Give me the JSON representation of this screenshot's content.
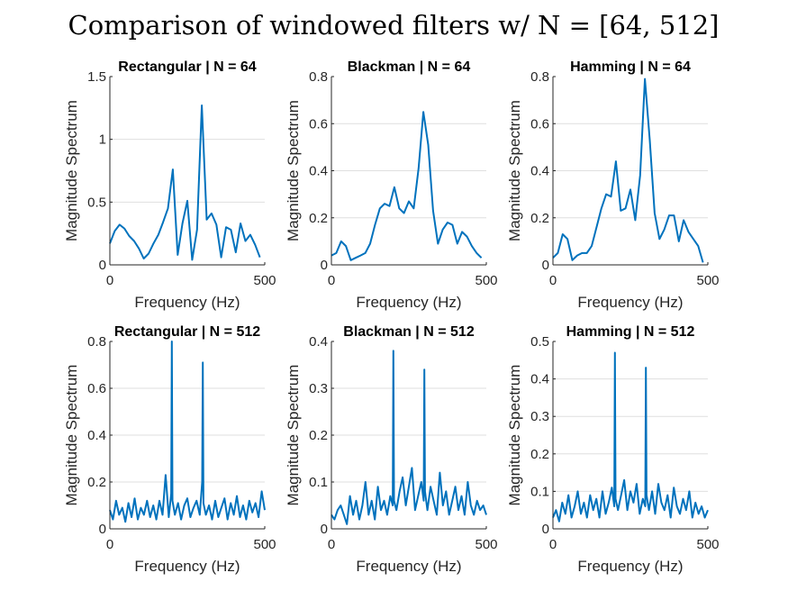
{
  "figure_title": "Comparison of windowed filters w/ N = [64, 512]",
  "series_color": "#0072BD",
  "chart_data": [
    {
      "type": "line",
      "title": "Rectangular | N = 64",
      "xlabel": "Frequency (Hz)",
      "ylabel": "Magnitude Spectrum",
      "xlim": [
        0,
        500
      ],
      "ylim": [
        0,
        1.5
      ],
      "xticks": [
        0,
        500
      ],
      "yticks": [
        0,
        0.5,
        1,
        1.5
      ],
      "ytick_labels": [
        "0",
        "0.5",
        "1",
        "1.5"
      ],
      "grid": "y",
      "x": [
        0,
        15.6,
        31.3,
        46.9,
        62.5,
        78.1,
        93.8,
        109.4,
        125,
        140.6,
        156.3,
        171.9,
        187.5,
        203.1,
        218.8,
        234.4,
        250,
        265.6,
        281.3,
        296.9,
        312.5,
        328.1,
        343.8,
        359.4,
        375,
        390.6,
        406.3,
        421.9,
        437.5,
        453.1,
        468.8,
        484.4
      ],
      "y": [
        0.17,
        0.27,
        0.32,
        0.29,
        0.23,
        0.19,
        0.13,
        0.05,
        0.09,
        0.17,
        0.24,
        0.34,
        0.45,
        0.76,
        0.08,
        0.33,
        0.51,
        0.04,
        0.28,
        1.27,
        0.36,
        0.41,
        0.32,
        0.06,
        0.3,
        0.28,
        0.1,
        0.33,
        0.19,
        0.24,
        0.16,
        0.06
      ]
    },
    {
      "type": "line",
      "title": "Blackman | N = 64",
      "xlabel": "Frequency (Hz)",
      "ylabel": "Magnitude Spectrum",
      "xlim": [
        0,
        500
      ],
      "ylim": [
        0,
        0.8
      ],
      "xticks": [
        0,
        500
      ],
      "yticks": [
        0,
        0.2,
        0.4,
        0.6,
        0.8
      ],
      "ytick_labels": [
        "0",
        "0.2",
        "0.4",
        "0.6",
        "0.8"
      ],
      "grid": "y",
      "x": [
        0,
        15.6,
        31.3,
        46.9,
        62.5,
        78.1,
        93.8,
        109.4,
        125,
        140.6,
        156.3,
        171.9,
        187.5,
        203.1,
        218.8,
        234.4,
        250,
        265.6,
        281.3,
        296.9,
        312.5,
        328.1,
        343.8,
        359.4,
        375,
        390.6,
        406.3,
        421.9,
        437.5,
        453.1,
        468.8,
        484.4
      ],
      "y": [
        0.04,
        0.05,
        0.1,
        0.08,
        0.02,
        0.03,
        0.04,
        0.05,
        0.09,
        0.17,
        0.24,
        0.26,
        0.25,
        0.33,
        0.24,
        0.22,
        0.27,
        0.24,
        0.41,
        0.65,
        0.51,
        0.23,
        0.09,
        0.15,
        0.18,
        0.17,
        0.09,
        0.14,
        0.12,
        0.08,
        0.05,
        0.03
      ]
    },
    {
      "type": "line",
      "title": "Hamming | N = 64",
      "xlabel": "Frequency (Hz)",
      "ylabel": "Magnitude Spectrum",
      "xlim": [
        0,
        500
      ],
      "ylim": [
        0,
        0.8
      ],
      "xticks": [
        0,
        500
      ],
      "yticks": [
        0,
        0.2,
        0.4,
        0.6,
        0.8
      ],
      "ytick_labels": [
        "0",
        "0.2",
        "0.4",
        "0.6",
        "0.8"
      ],
      "grid": "y",
      "x": [
        0,
        15.6,
        31.3,
        46.9,
        62.5,
        78.1,
        93.8,
        109.4,
        125,
        140.6,
        156.3,
        171.9,
        187.5,
        203.1,
        218.8,
        234.4,
        250,
        265.6,
        281.3,
        296.9,
        312.5,
        328.1,
        343.8,
        359.4,
        375,
        390.6,
        406.3,
        421.9,
        437.5,
        453.1,
        468.8,
        484.4
      ],
      "y": [
        0.03,
        0.05,
        0.13,
        0.11,
        0.02,
        0.04,
        0.05,
        0.05,
        0.08,
        0.16,
        0.24,
        0.3,
        0.29,
        0.44,
        0.23,
        0.24,
        0.32,
        0.19,
        0.38,
        0.79,
        0.53,
        0.22,
        0.11,
        0.15,
        0.21,
        0.21,
        0.1,
        0.19,
        0.14,
        0.11,
        0.08,
        0.01
      ]
    },
    {
      "type": "line",
      "title": "Rectangular | N = 512",
      "xlabel": "Frequency (Hz)",
      "ylabel": "Magnitude Spectrum",
      "xlim": [
        0,
        500
      ],
      "ylim": [
        0,
        0.8
      ],
      "xticks": [
        0,
        500
      ],
      "yticks": [
        0,
        0.2,
        0.4,
        0.6,
        0.8
      ],
      "ytick_labels": [
        "0",
        "0.2",
        "0.4",
        "0.6",
        "0.8"
      ],
      "grid": "y",
      "x": [
        0,
        10,
        20,
        30,
        40,
        50,
        60,
        70,
        80,
        90,
        100,
        110,
        120,
        130,
        140,
        150,
        160,
        170,
        180,
        190,
        198,
        200,
        202,
        210,
        220,
        230,
        240,
        250,
        260,
        270,
        280,
        290,
        298,
        300,
        302,
        310,
        320,
        330,
        340,
        350,
        360,
        370,
        380,
        390,
        400,
        410,
        420,
        430,
        440,
        450,
        460,
        470,
        480,
        490,
        500
      ],
      "y": [
        0.08,
        0.04,
        0.12,
        0.06,
        0.09,
        0.03,
        0.11,
        0.05,
        0.13,
        0.04,
        0.09,
        0.06,
        0.12,
        0.05,
        0.1,
        0.04,
        0.12,
        0.06,
        0.23,
        0.05,
        0.15,
        0.8,
        0.12,
        0.06,
        0.11,
        0.04,
        0.1,
        0.13,
        0.05,
        0.09,
        0.12,
        0.06,
        0.2,
        0.71,
        0.11,
        0.06,
        0.1,
        0.04,
        0.12,
        0.05,
        0.09,
        0.13,
        0.04,
        0.11,
        0.06,
        0.14,
        0.05,
        0.1,
        0.04,
        0.12,
        0.07,
        0.11,
        0.05,
        0.16,
        0.08
      ]
    },
    {
      "type": "line",
      "title": "Blackman | N = 512",
      "xlabel": "Frequency (Hz)",
      "ylabel": "Magnitude Spectrum",
      "xlim": [
        0,
        500
      ],
      "ylim": [
        0,
        0.4
      ],
      "xticks": [
        0,
        500
      ],
      "yticks": [
        0,
        0.1,
        0.2,
        0.3,
        0.4
      ],
      "ytick_labels": [
        "0",
        "0.1",
        "0.2",
        "0.3",
        "0.4"
      ],
      "grid": "y",
      "x": [
        0,
        10,
        20,
        30,
        40,
        50,
        60,
        70,
        80,
        90,
        100,
        110,
        120,
        130,
        140,
        150,
        160,
        170,
        180,
        190,
        198,
        200,
        202,
        210,
        220,
        230,
        240,
        250,
        260,
        270,
        280,
        290,
        298,
        300,
        302,
        310,
        320,
        330,
        340,
        350,
        360,
        370,
        380,
        390,
        400,
        410,
        420,
        430,
        440,
        450,
        460,
        470,
        480,
        490,
        500
      ],
      "y": [
        0.03,
        0.02,
        0.04,
        0.05,
        0.03,
        0.01,
        0.07,
        0.03,
        0.06,
        0.02,
        0.05,
        0.1,
        0.03,
        0.06,
        0.02,
        0.09,
        0.04,
        0.06,
        0.03,
        0.07,
        0.05,
        0.38,
        0.06,
        0.04,
        0.08,
        0.11,
        0.05,
        0.09,
        0.13,
        0.04,
        0.07,
        0.1,
        0.06,
        0.34,
        0.08,
        0.04,
        0.09,
        0.06,
        0.03,
        0.12,
        0.05,
        0.08,
        0.03,
        0.06,
        0.09,
        0.04,
        0.07,
        0.03,
        0.1,
        0.05,
        0.03,
        0.06,
        0.04,
        0.05,
        0.03
      ]
    },
    {
      "type": "line",
      "title": "Hamming | N = 512",
      "xlabel": "Frequency (Hz)",
      "ylabel": "Magnitude Spectrum",
      "xlim": [
        0,
        500
      ],
      "ylim": [
        0,
        0.5
      ],
      "xticks": [
        0,
        500
      ],
      "yticks": [
        0,
        0.1,
        0.2,
        0.3,
        0.4,
        0.5
      ],
      "ytick_labels": [
        "0",
        "0.1",
        "0.2",
        "0.3",
        "0.4",
        "0.5"
      ],
      "grid": "y",
      "x": [
        0,
        10,
        20,
        30,
        40,
        50,
        60,
        70,
        80,
        90,
        100,
        110,
        120,
        130,
        140,
        150,
        160,
        170,
        180,
        190,
        198,
        200,
        202,
        210,
        220,
        230,
        240,
        250,
        260,
        270,
        280,
        290,
        298,
        300,
        302,
        310,
        320,
        330,
        340,
        350,
        360,
        370,
        380,
        390,
        400,
        410,
        420,
        430,
        440,
        450,
        460,
        470,
        480,
        490,
        500
      ],
      "y": [
        0.03,
        0.05,
        0.02,
        0.07,
        0.04,
        0.09,
        0.03,
        0.06,
        0.1,
        0.04,
        0.07,
        0.03,
        0.09,
        0.05,
        0.08,
        0.03,
        0.1,
        0.04,
        0.07,
        0.11,
        0.06,
        0.47,
        0.08,
        0.05,
        0.09,
        0.13,
        0.05,
        0.1,
        0.07,
        0.12,
        0.04,
        0.08,
        0.06,
        0.43,
        0.09,
        0.05,
        0.1,
        0.04,
        0.12,
        0.07,
        0.05,
        0.09,
        0.03,
        0.11,
        0.06,
        0.04,
        0.08,
        0.05,
        0.1,
        0.03,
        0.07,
        0.04,
        0.06,
        0.03,
        0.05
      ]
    }
  ]
}
